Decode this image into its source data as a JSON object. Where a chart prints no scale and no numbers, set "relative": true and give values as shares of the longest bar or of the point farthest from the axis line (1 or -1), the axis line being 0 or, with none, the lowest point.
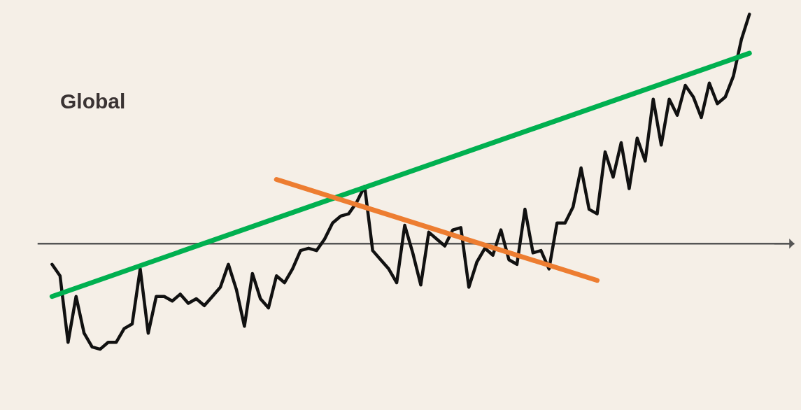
{
  "chart_data": {
    "type": "line",
    "title": "Global",
    "relative": true,
    "categories": [
      null,
      null,
      null,
      null,
      null,
      null,
      null,
      null,
      null,
      null,
      null,
      null,
      null,
      null,
      null,
      null,
      null,
      null,
      null,
      null,
      null,
      null,
      null,
      null,
      null,
      null,
      null,
      null,
      null,
      null,
      null,
      null,
      null,
      null,
      null,
      null,
      null,
      null,
      null,
      null,
      null,
      null,
      null,
      null,
      null,
      null,
      null,
      null,
      null,
      null,
      null,
      null,
      null,
      null,
      null,
      null,
      null,
      null,
      null,
      null,
      null,
      null,
      null,
      null,
      null,
      null,
      null,
      null,
      null,
      null,
      null,
      null,
      null,
      null,
      null,
      null,
      null,
      null,
      null,
      null,
      null,
      null,
      null,
      null,
      null,
      null,
      null,
      null
    ],
    "series": [
      {
        "color": "#111111",
        "values": [
          -0.09,
          -0.14,
          -0.43,
          -0.23,
          -0.39,
          -0.45,
          -0.46,
          -0.43,
          -0.43,
          -0.37,
          -0.35,
          -0.11,
          -0.39,
          -0.23,
          -0.23,
          -0.25,
          -0.22,
          -0.26,
          -0.24,
          -0.27,
          -0.23,
          -0.19,
          -0.09,
          -0.2,
          -0.36,
          -0.13,
          -0.24,
          -0.28,
          -0.14,
          -0.17,
          -0.11,
          -0.03,
          -0.02,
          -0.03,
          0.02,
          0.09,
          0.12,
          0.13,
          0.18,
          0.25,
          -0.03,
          -0.07,
          -0.11,
          -0.17,
          0.08,
          -0.04,
          -0.18,
          0.05,
          0.02,
          -0.01,
          0.06,
          0.07,
          -0.19,
          -0.08,
          -0.02,
          -0.05,
          0.06,
          -0.07,
          -0.09,
          0.15,
          -0.04,
          -0.03,
          -0.11,
          0.09,
          0.09,
          0.16,
          0.33,
          0.15,
          0.13,
          0.4,
          0.29,
          0.44,
          0.24,
          0.46,
          0.36,
          0.63,
          0.43,
          0.63,
          0.56,
          0.69,
          0.64,
          0.55,
          0.7,
          0.61,
          0.64,
          0.73,
          0.89,
          1
        ]
      },
      {
        "type": "line",
        "color": "#00b050",
        "values": [
          -0.23,
          null,
          null,
          null,
          null,
          null,
          null,
          null,
          null,
          null,
          null,
          null,
          null,
          null,
          null,
          null,
          null,
          null,
          null,
          null,
          null,
          null,
          null,
          null,
          null,
          null,
          null,
          null,
          null,
          null,
          null,
          null,
          null,
          null,
          null,
          null,
          null,
          null,
          null,
          null,
          null,
          null,
          null,
          null,
          null,
          null,
          null,
          null,
          null,
          null,
          null,
          null,
          null,
          null,
          null,
          null,
          null,
          null,
          null,
          null,
          null,
          null,
          null,
          null,
          null,
          null,
          null,
          null,
          null,
          null,
          null,
          null,
          null,
          null,
          null,
          null,
          null,
          null,
          null,
          null,
          null,
          null,
          null,
          null,
          null,
          null,
          null,
          0.83
        ]
      },
      {
        "type": "line",
        "color": "#ed7d31",
        "values": [
          null,
          null,
          null,
          null,
          null,
          null,
          null,
          null,
          null,
          null,
          null,
          null,
          null,
          null,
          null,
          null,
          null,
          null,
          null,
          null,
          null,
          null,
          null,
          null,
          null,
          null,
          null,
          null,
          0.28,
          null,
          null,
          null,
          null,
          null,
          null,
          null,
          null,
          null,
          null,
          null,
          null,
          null,
          null,
          null,
          null,
          null,
          null,
          null,
          null,
          null,
          null,
          null,
          null,
          null,
          null,
          null,
          null,
          null,
          null,
          null,
          null,
          null,
          null,
          null,
          null,
          null,
          null,
          null,
          -0.16,
          null,
          null,
          null,
          null,
          null,
          null,
          null,
          null,
          null,
          null,
          null,
          null,
          null,
          null,
          null,
          null,
          null,
          null,
          null
        ]
      }
    ]
  }
}
